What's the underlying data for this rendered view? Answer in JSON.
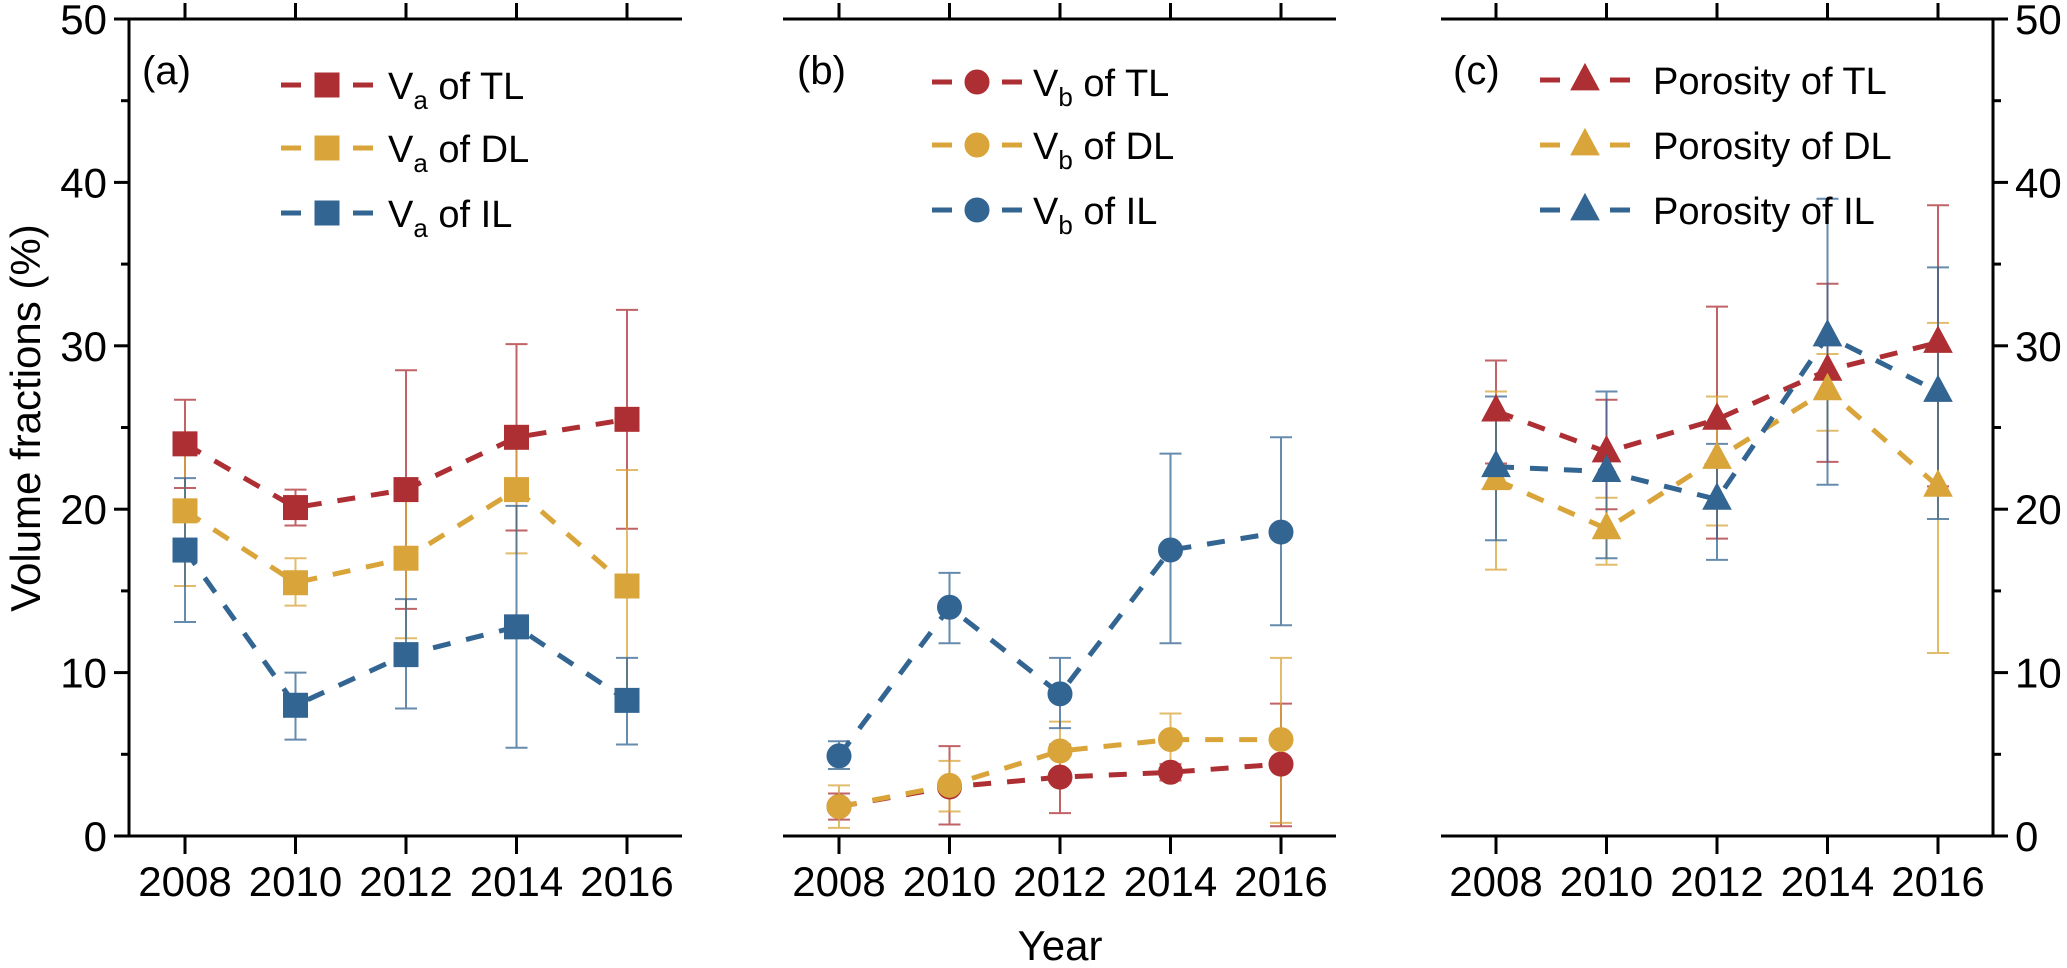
{
  "chart_data": {
    "type": "line",
    "shared": {
      "xlabel": "Year",
      "ylabel": "Volume fractions (%)",
      "x": [
        2008,
        2010,
        2012,
        2014,
        2016
      ],
      "x_tick_labels": [
        "2008",
        "2010",
        "2012",
        "2014",
        "2016"
      ],
      "ylim": [
        0,
        50
      ],
      "y_major_ticks": [
        0,
        10,
        20,
        30,
        40,
        50
      ],
      "y_tick_labels": [
        "0",
        "10",
        "20",
        "30",
        "40",
        "50"
      ],
      "y_minor_ticks": [
        5,
        15,
        25,
        35,
        45
      ],
      "grid": false,
      "line_style": "dashed",
      "colors": {
        "TL": "#ad2f33",
        "DL": "#d9a53a",
        "IL": "#336592"
      }
    },
    "panels": [
      {
        "label": "(a)",
        "marker": "square",
        "legend_position": "top-center",
        "y_axis_side": "left",
        "series": [
          {
            "name": "Va of TL",
            "main": "V",
            "sub": "a",
            "rest": " of TL",
            "layer": "TL",
            "values": [
              24.0,
              20.1,
              21.2,
              24.4,
              25.5
            ],
            "err_low": [
              21.3,
              19.0,
              13.9,
              18.7,
              18.8
            ],
            "err_high": [
              26.7,
              21.2,
              28.5,
              30.1,
              32.2
            ]
          },
          {
            "name": "Va of DL",
            "main": "V",
            "sub": "a",
            "rest": " of DL",
            "layer": "DL",
            "values": [
              19.9,
              15.5,
              17.0,
              21.2,
              15.3
            ],
            "err_low": [
              15.3,
              14.1,
              12.1,
              17.3,
              8.2
            ],
            "err_high": [
              24.4,
              17.0,
              21.8,
              25.0,
              22.4
            ]
          },
          {
            "name": "Va of IL",
            "main": "V",
            "sub": "a",
            "rest": " of IL",
            "layer": "IL",
            "values": [
              17.5,
              8.0,
              11.1,
              12.8,
              8.3
            ],
            "err_low": [
              13.1,
              5.9,
              7.8,
              5.4,
              5.6
            ],
            "err_high": [
              21.9,
              10.0,
              14.5,
              20.2,
              10.9
            ]
          }
        ]
      },
      {
        "label": "(b)",
        "marker": "circle",
        "legend_position": "top-center",
        "y_axis_side": "none",
        "series": [
          {
            "name": "Vb of TL",
            "main": "V",
            "sub": "b",
            "rest": " of TL",
            "layer": "TL",
            "values": [
              1.8,
              3.0,
              3.6,
              3.9,
              4.4
            ],
            "err_low": [
              1.0,
              0.7,
              1.4,
              3.4,
              0.6
            ],
            "err_high": [
              2.6,
              5.5,
              5.6,
              4.4,
              8.1
            ]
          },
          {
            "name": "Vb of DL",
            "main": "V",
            "sub": "b",
            "rest": " of DL",
            "layer": "DL",
            "values": [
              1.8,
              3.1,
              5.2,
              5.9,
              5.9
            ],
            "err_low": [
              0.5,
              1.5,
              3.6,
              4.1,
              0.8
            ],
            "err_high": [
              3.1,
              4.6,
              7.0,
              7.5,
              10.9
            ]
          },
          {
            "name": "Vb of IL",
            "main": "V",
            "sub": "b",
            "rest": " of IL",
            "layer": "IL",
            "values": [
              4.9,
              14.0,
              8.7,
              17.5,
              18.6
            ],
            "err_low": [
              4.1,
              11.8,
              6.6,
              11.8,
              12.9
            ],
            "err_high": [
              5.8,
              16.1,
              10.9,
              23.4,
              24.4
            ]
          }
        ]
      },
      {
        "label": "(c)",
        "marker": "triangle",
        "legend_position": "top-center",
        "y_axis_side": "right",
        "series": [
          {
            "name": "Porosity of TL",
            "main": "Porosity of TL",
            "sub": "",
            "rest": "",
            "layer": "TL",
            "values": [
              26.0,
              23.5,
              25.5,
              28.5,
              30.2
            ],
            "err_low": [
              22.8,
              20.0,
              18.2,
              22.9,
              21.4
            ],
            "err_high": [
              29.1,
              26.7,
              32.4,
              33.8,
              38.6
            ]
          },
          {
            "name": "Porosity of DL",
            "main": "Porosity of DL",
            "sub": "",
            "rest": "",
            "layer": "DL",
            "values": [
              21.8,
              18.8,
              23.1,
              27.3,
              21.4
            ],
            "err_low": [
              16.3,
              16.6,
              19.0,
              24.8,
              11.2
            ],
            "err_high": [
              27.2,
              20.7,
              26.9,
              29.5,
              31.4
            ]
          },
          {
            "name": "Porosity of IL",
            "main": "Porosity of IL",
            "sub": "",
            "rest": "",
            "layer": "IL",
            "values": [
              22.6,
              22.3,
              20.6,
              30.6,
              27.2
            ],
            "err_low": [
              18.1,
              17.0,
              16.9,
              21.5,
              19.4
            ],
            "err_high": [
              26.9,
              27.2,
              24.0,
              39.0,
              34.8
            ]
          }
        ]
      }
    ]
  }
}
